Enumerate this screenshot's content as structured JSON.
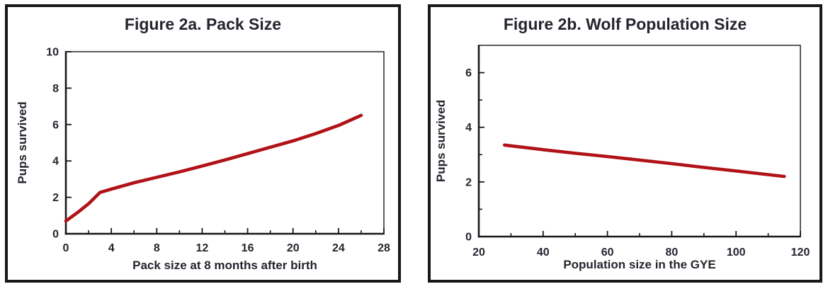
{
  "colors": {
    "line": "#b01217",
    "axis": "#1a171c",
    "text": "#26242e",
    "panel_border": "#1a171c",
    "background": "#ffffff"
  },
  "chart_data": [
    {
      "type": "line",
      "title": "Figure 2a. Pack Size",
      "xlabel": "Pack size at 8 months after birth",
      "ylabel": "Pups survived",
      "xlim": [
        0,
        28
      ],
      "ylim": [
        0,
        10
      ],
      "x_major_ticks": [
        0,
        4,
        8,
        12,
        16,
        20,
        24,
        28
      ],
      "x_minor_ticks": [
        2,
        6,
        10,
        14,
        18,
        22,
        26
      ],
      "y_major_ticks": [
        0,
        2,
        4,
        6,
        8,
        10
      ],
      "y_minor_ticks": [],
      "grid": false,
      "legend": "none",
      "series": [
        {
          "name": "Pups survived vs pack size",
          "color": "#b01217",
          "points": [
            [
              0,
              0.7
            ],
            [
              1,
              1.15
            ],
            [
              2,
              1.65
            ],
            [
              3,
              2.27
            ],
            [
              4,
              2.45
            ],
            [
              6,
              2.8
            ],
            [
              8,
              3.1
            ],
            [
              10,
              3.4
            ],
            [
              12,
              3.72
            ],
            [
              14,
              4.05
            ],
            [
              16,
              4.4
            ],
            [
              18,
              4.75
            ],
            [
              20,
              5.1
            ],
            [
              22,
              5.5
            ],
            [
              24,
              5.95
            ],
            [
              26,
              6.5
            ]
          ]
        }
      ]
    },
    {
      "type": "line",
      "title": "Figure 2b. Wolf Population Size",
      "xlabel": "Population size in the GYE",
      "ylabel": "Pups survived",
      "xlim": [
        20,
        120
      ],
      "ylim": [
        0,
        7
      ],
      "x_major_ticks": [
        20,
        40,
        60,
        80,
        100,
        120
      ],
      "x_minor_ticks": [
        30,
        50,
        70,
        90,
        110
      ],
      "y_major_ticks": [
        0,
        2,
        4,
        6
      ],
      "y_minor_ticks": [
        1,
        3,
        5
      ],
      "grid": false,
      "legend": "none",
      "series": [
        {
          "name": "Pups survived vs population size",
          "color": "#b01217",
          "points": [
            [
              28,
              3.35
            ],
            [
              40,
              3.18
            ],
            [
              50,
              3.05
            ],
            [
              60,
              2.93
            ],
            [
              70,
              2.8
            ],
            [
              80,
              2.67
            ],
            [
              90,
              2.53
            ],
            [
              100,
              2.4
            ],
            [
              115,
              2.2
            ]
          ]
        }
      ]
    }
  ]
}
